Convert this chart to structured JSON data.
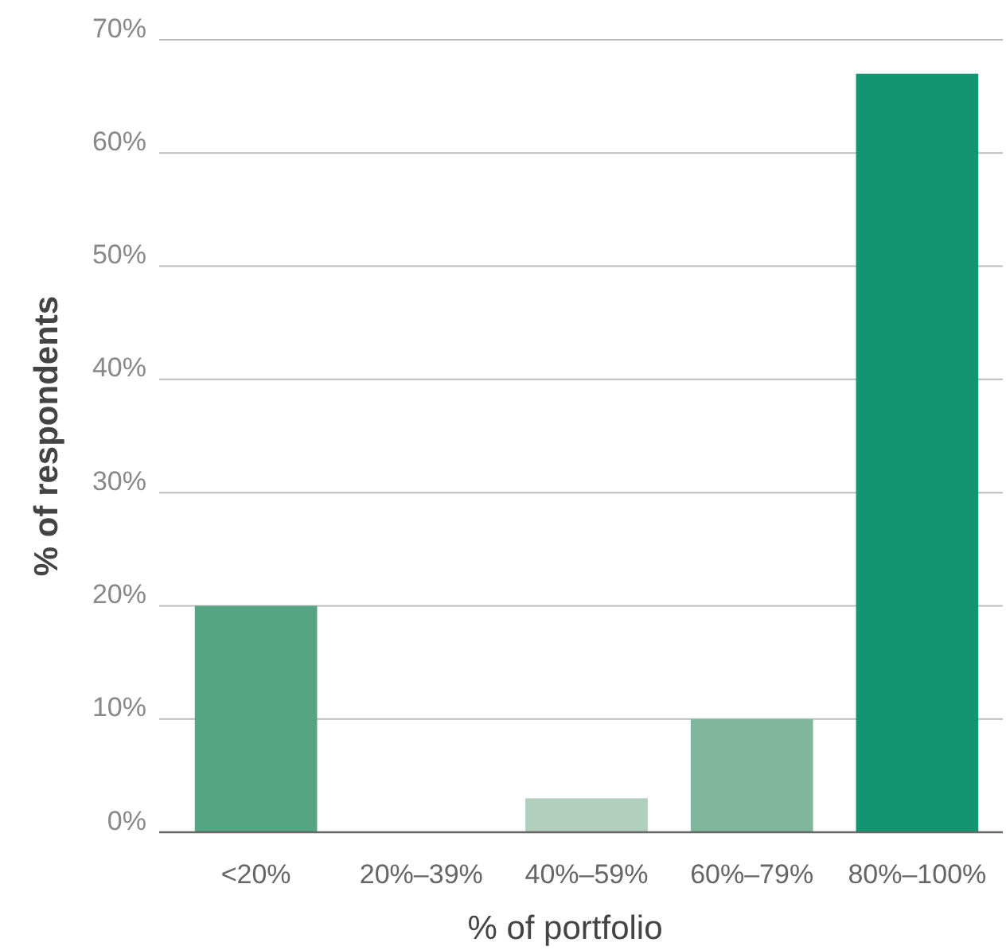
{
  "chart_data": {
    "type": "bar",
    "xlabel": "% of portfolio",
    "ylabel": "% of respondents",
    "categories": [
      "<20%",
      "20%–39%",
      "40%–59%",
      "60%–79%",
      "80%–100%"
    ],
    "values": [
      20,
      0,
      3,
      10,
      67
    ],
    "colors": [
      "#55a585",
      "#9cc4ad",
      "#b0cfbd",
      "#80b69c",
      "#139571"
    ],
    "ylim": [
      0,
      70
    ],
    "yticks": [
      {
        "value": 0,
        "label": "0%"
      },
      {
        "value": 10,
        "label": "10%"
      },
      {
        "value": 20,
        "label": "20%"
      },
      {
        "value": 30,
        "label": "30%"
      },
      {
        "value": 40,
        "label": "40%"
      },
      {
        "value": 50,
        "label": "50%"
      },
      {
        "value": 60,
        "label": "60%"
      },
      {
        "value": 70,
        "label": "70%"
      }
    ],
    "grid": "y"
  }
}
